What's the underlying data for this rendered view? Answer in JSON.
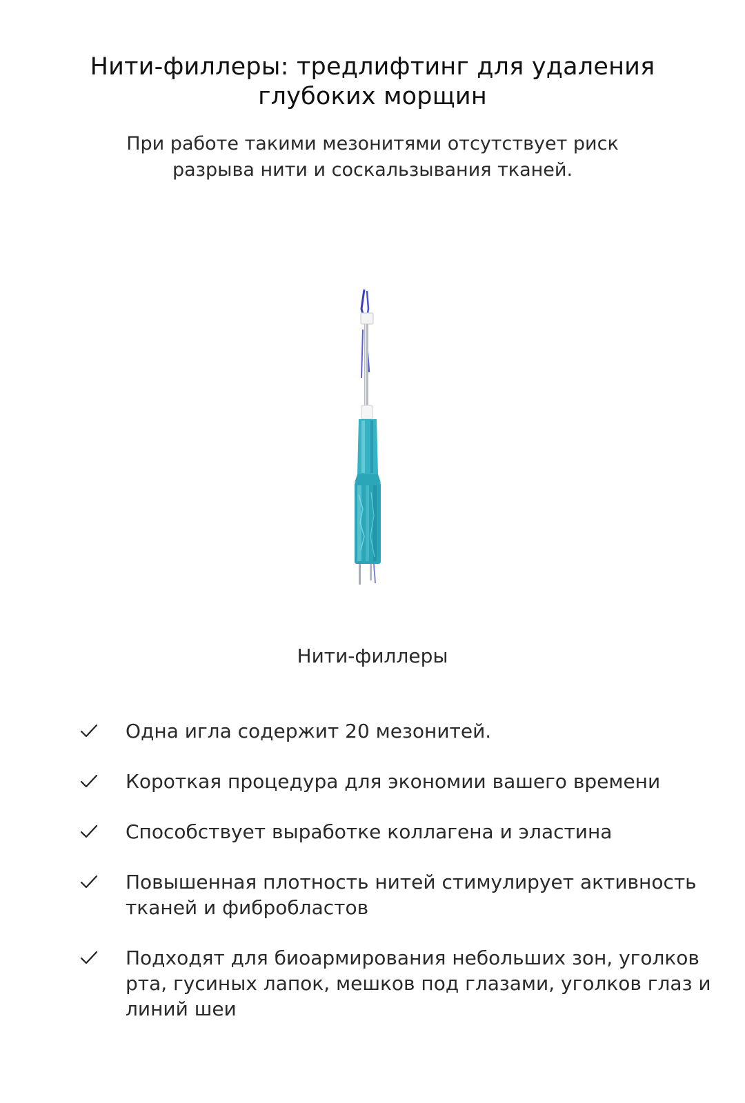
{
  "heading": {
    "title": "Нити-филлеры: тредлифтинг для удаления глубоких морщин",
    "subtitle": "При работе такими мезонитями отсутствует риск разрыва нити и соскальзывания тканей."
  },
  "product": {
    "image_icon": "thread-filler-needle-image",
    "caption": "Нити-филлеры",
    "colors": {
      "thread": "#3a3fc4",
      "hub": "#2aa6b8",
      "cap": "#f4f4f4"
    }
  },
  "benefits": {
    "check_icon": "checkmark-icon",
    "items": [
      "Одна игла содержит 20 мезонитей.",
      "Короткая процедура для экономии вашего времени",
      "Способствует выработке коллагена и эластина",
      "Повышенная плотность нитей стимулирует активность тканей и фибробластов",
      "Подходят для биоармирования небольших зон, уголков рта, гусиных лапок, мешков под глазами, уголков глаз и линий шеи"
    ]
  }
}
